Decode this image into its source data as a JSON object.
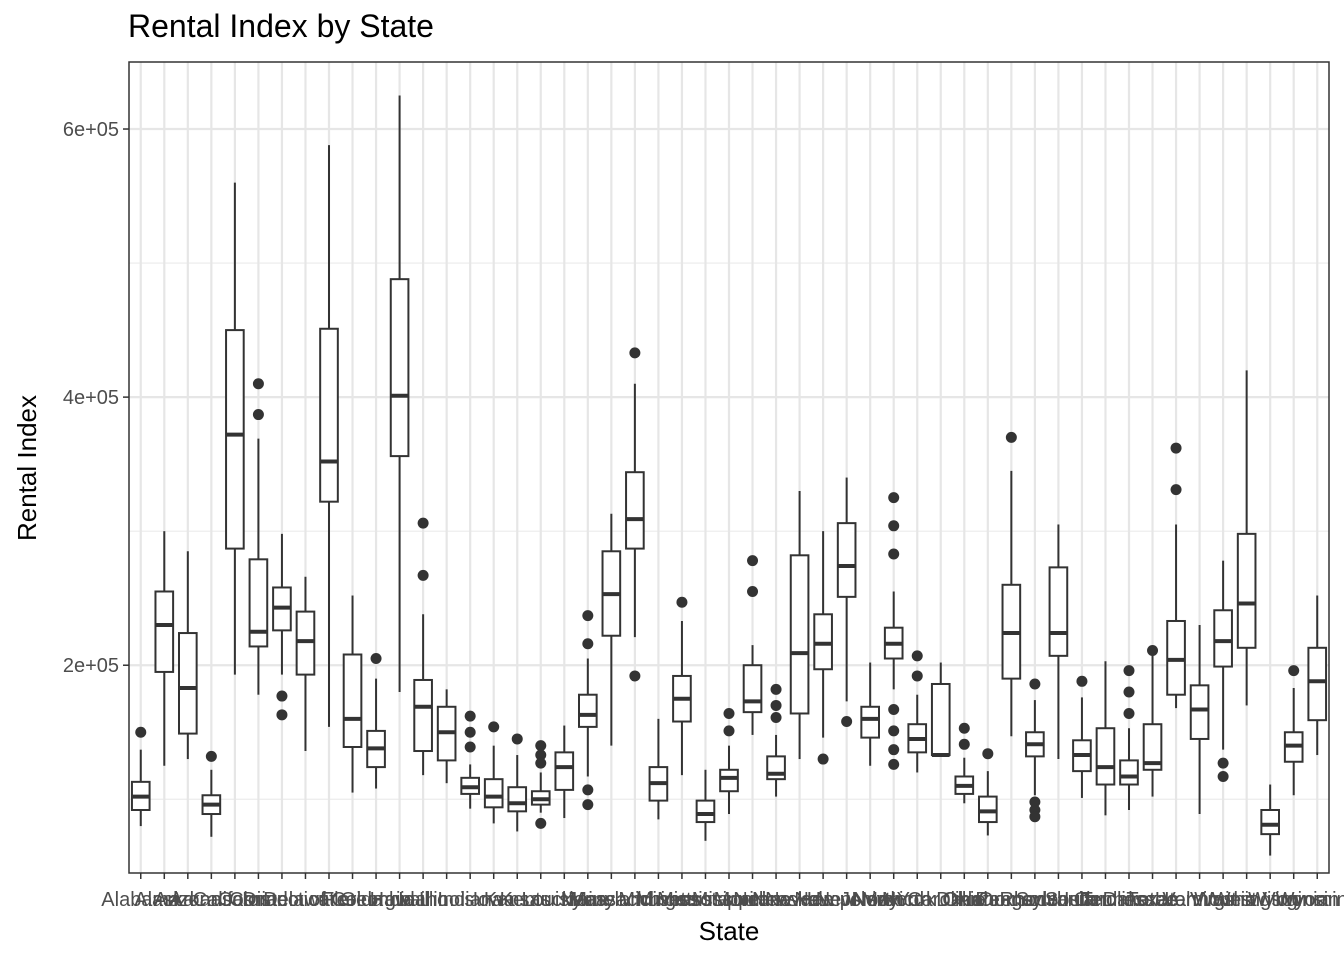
{
  "chart_data": {
    "type": "box",
    "title": "Rental Index by State",
    "xlabel": "State",
    "ylabel": "Rental Index",
    "ylim": [
      45000,
      650000
    ],
    "yticks": [
      200000,
      400000,
      600000
    ],
    "ytick_labels": [
      "2e+05",
      "4e+05",
      "6e+05"
    ],
    "grid": true,
    "categories": [
      "Alabama",
      "Alaska",
      "Arizona",
      "Arkansas",
      "California",
      "Colorado",
      "Connecticut",
      "Delaware",
      "District of Columbia",
      "Florida",
      "Georgia",
      "Hawaii",
      "Idaho",
      "Illinois",
      "Indiana",
      "Iowa",
      "Kansas",
      "Kentucky",
      "Louisiana",
      "Maine",
      "Maryland",
      "Massachusetts",
      "Michigan",
      "Minnesota",
      "Mississippi",
      "Missouri",
      "Montana",
      "Nebraska",
      "Nevada",
      "New Hampshire",
      "New Jersey",
      "New Mexico",
      "New York",
      "North Carolina",
      "North Dakota",
      "Ohio",
      "Oklahoma",
      "Oregon",
      "Pennsylvania",
      "Rhode Island",
      "South Carolina",
      "South Dakota",
      "Tennessee",
      "Texas",
      "Utah",
      "Vermont",
      "Virginia",
      "Washington",
      "West Virginia",
      "Wisconsin",
      "Wyoming"
    ],
    "boxes": [
      {
        "whisker_low": 80000,
        "q1": 92000,
        "median": 102000,
        "q3": 113000,
        "whisker_high": 137000,
        "outliers": [
          150000
        ]
      },
      {
        "whisker_low": 125000,
        "q1": 195000,
        "median": 230000,
        "q3": 255000,
        "whisker_high": 300000,
        "outliers": []
      },
      {
        "whisker_low": 130000,
        "q1": 149000,
        "median": 183000,
        "q3": 224000,
        "whisker_high": 285000,
        "outliers": []
      },
      {
        "whisker_low": 72000,
        "q1": 89000,
        "median": 96000,
        "q3": 103000,
        "whisker_high": 122000,
        "outliers": [
          132000
        ]
      },
      {
        "whisker_low": 193000,
        "q1": 287000,
        "median": 372000,
        "q3": 450000,
        "whisker_high": 560000,
        "outliers": []
      },
      {
        "whisker_low": 178000,
        "q1": 214000,
        "median": 225000,
        "q3": 279000,
        "whisker_high": 369000,
        "outliers": [
          410000,
          387000
        ]
      },
      {
        "whisker_low": 193000,
        "q1": 226000,
        "median": 243000,
        "q3": 258000,
        "whisker_high": 298000,
        "outliers": [
          177000,
          163000
        ]
      },
      {
        "whisker_low": 136000,
        "q1": 193000,
        "median": 218000,
        "q3": 240000,
        "whisker_high": 266000,
        "outliers": []
      },
      {
        "whisker_low": 154000,
        "q1": 322000,
        "median": 352000,
        "q3": 451000,
        "whisker_high": 588000,
        "outliers": []
      },
      {
        "whisker_low": 105000,
        "q1": 139000,
        "median": 160000,
        "q3": 208000,
        "whisker_high": 252000,
        "outliers": []
      },
      {
        "whisker_low": 108000,
        "q1": 124000,
        "median": 138000,
        "q3": 151000,
        "whisker_high": 190000,
        "outliers": [
          205000
        ]
      },
      {
        "whisker_low": 180000,
        "q1": 356000,
        "median": 401000,
        "q3": 488000,
        "whisker_high": 625000,
        "outliers": []
      },
      {
        "whisker_low": 118000,
        "q1": 136000,
        "median": 169000,
        "q3": 189000,
        "whisker_high": 238000,
        "outliers": [
          306000,
          267000
        ]
      },
      {
        "whisker_low": 112000,
        "q1": 129000,
        "median": 150000,
        "q3": 169000,
        "whisker_high": 182000,
        "outliers": []
      },
      {
        "whisker_low": 93000,
        "q1": 104000,
        "median": 109000,
        "q3": 116000,
        "whisker_high": 126000,
        "outliers": [
          162000,
          150000,
          139000
        ]
      },
      {
        "whisker_low": 82000,
        "q1": 94000,
        "median": 102000,
        "q3": 115000,
        "whisker_high": 140000,
        "outliers": [
          154000
        ]
      },
      {
        "whisker_low": 76000,
        "q1": 91000,
        "median": 97000,
        "q3": 109000,
        "whisker_high": 133000,
        "outliers": [
          145000
        ]
      },
      {
        "whisker_low": 90000,
        "q1": 96000,
        "median": 100000,
        "q3": 106000,
        "whisker_high": 120000,
        "outliers": [
          140000,
          133000,
          127000,
          82000
        ]
      },
      {
        "whisker_low": 86000,
        "q1": 107000,
        "median": 124000,
        "q3": 135000,
        "whisker_high": 155000,
        "outliers": []
      },
      {
        "whisker_low": 117000,
        "q1": 154000,
        "median": 163000,
        "q3": 178000,
        "whisker_high": 205000,
        "outliers": [
          237000,
          216000,
          107000,
          96000
        ]
      },
      {
        "whisker_low": 140000,
        "q1": 222000,
        "median": 253000,
        "q3": 285000,
        "whisker_high": 313000,
        "outliers": []
      },
      {
        "whisker_low": 221000,
        "q1": 287000,
        "median": 309000,
        "q3": 344000,
        "whisker_high": 410000,
        "outliers": [
          433000,
          192000
        ]
      },
      {
        "whisker_low": 85000,
        "q1": 99000,
        "median": 112000,
        "q3": 124000,
        "whisker_high": 160000,
        "outliers": []
      },
      {
        "whisker_low": 118000,
        "q1": 158000,
        "median": 175000,
        "q3": 192000,
        "whisker_high": 233000,
        "outliers": [
          247000
        ]
      },
      {
        "whisker_low": 69000,
        "q1": 83000,
        "median": 89000,
        "q3": 99000,
        "whisker_high": 122000,
        "outliers": []
      },
      {
        "whisker_low": 89000,
        "q1": 106000,
        "median": 116000,
        "q3": 122000,
        "whisker_high": 140000,
        "outliers": [
          164000,
          151000
        ]
      },
      {
        "whisker_low": 148000,
        "q1": 165000,
        "median": 173000,
        "q3": 200000,
        "whisker_high": 215000,
        "outliers": [
          278000,
          255000
        ]
      },
      {
        "whisker_low": 102000,
        "q1": 115000,
        "median": 119000,
        "q3": 132000,
        "whisker_high": 148000,
        "outliers": [
          182000,
          170000,
          161000
        ]
      },
      {
        "whisker_low": 130000,
        "q1": 164000,
        "median": 209000,
        "q3": 282000,
        "whisker_high": 330000,
        "outliers": []
      },
      {
        "whisker_low": 146000,
        "q1": 197000,
        "median": 216000,
        "q3": 238000,
        "whisker_high": 300000,
        "outliers": [
          130000
        ]
      },
      {
        "whisker_low": 173000,
        "q1": 251000,
        "median": 274000,
        "q3": 306000,
        "whisker_high": 340000,
        "outliers": [
          158000
        ]
      },
      {
        "whisker_low": 125000,
        "q1": 146000,
        "median": 160000,
        "q3": 169000,
        "whisker_high": 202000,
        "outliers": []
      },
      {
        "whisker_low": 182000,
        "q1": 205000,
        "median": 216000,
        "q3": 228000,
        "whisker_high": 255000,
        "outliers": [
          325000,
          304000,
          283000,
          167000,
          151000,
          137000,
          126000
        ]
      },
      {
        "whisker_low": 120000,
        "q1": 135000,
        "median": 145000,
        "q3": 156000,
        "whisker_high": 178000,
        "outliers": [
          207000,
          192000
        ]
      },
      {
        "whisker_low": 133000,
        "q1": 133000,
        "median": 133000,
        "q3": 186000,
        "whisker_high": 202000,
        "outliers": []
      },
      {
        "whisker_low": 97000,
        "q1": 104000,
        "median": 110000,
        "q3": 117000,
        "whisker_high": 131000,
        "outliers": [
          153000,
          141000
        ]
      },
      {
        "whisker_low": 73000,
        "q1": 83000,
        "median": 91000,
        "q3": 102000,
        "whisker_high": 121000,
        "outliers": [
          134000
        ]
      },
      {
        "whisker_low": 147000,
        "q1": 190000,
        "median": 224000,
        "q3": 260000,
        "whisker_high": 345000,
        "outliers": [
          370000
        ]
      },
      {
        "whisker_low": 103000,
        "q1": 132000,
        "median": 141000,
        "q3": 150000,
        "whisker_high": 174000,
        "outliers": [
          186000,
          98000,
          92000,
          87000
        ]
      },
      {
        "whisker_low": 130000,
        "q1": 207000,
        "median": 224000,
        "q3": 273000,
        "whisker_high": 305000,
        "outliers": []
      },
      {
        "whisker_low": 101000,
        "q1": 121000,
        "median": 133000,
        "q3": 144000,
        "whisker_high": 176000,
        "outliers": [
          188000
        ]
      },
      {
        "whisker_low": 88000,
        "q1": 111000,
        "median": 124000,
        "q3": 153000,
        "whisker_high": 203000,
        "outliers": []
      },
      {
        "whisker_low": 92000,
        "q1": 111000,
        "median": 117000,
        "q3": 129000,
        "whisker_high": 153000,
        "outliers": [
          196000,
          180000,
          164000
        ]
      },
      {
        "whisker_low": 102000,
        "q1": 122000,
        "median": 127000,
        "q3": 156000,
        "whisker_high": 210000,
        "outliers": [
          211000
        ]
      },
      {
        "whisker_low": 168000,
        "q1": 178000,
        "median": 204000,
        "q3": 233000,
        "whisker_high": 305000,
        "outliers": [
          362000,
          331000
        ]
      },
      {
        "whisker_low": 89000,
        "q1": 145000,
        "median": 167000,
        "q3": 185000,
        "whisker_high": 230000,
        "outliers": []
      },
      {
        "whisker_low": 137000,
        "q1": 199000,
        "median": 218000,
        "q3": 241000,
        "whisker_high": 278000,
        "outliers": [
          127000,
          117000
        ]
      },
      {
        "whisker_low": 170000,
        "q1": 213000,
        "median": 246000,
        "q3": 298000,
        "whisker_high": 420000,
        "outliers": []
      },
      {
        "whisker_low": 58000,
        "q1": 74000,
        "median": 81000,
        "q3": 92000,
        "whisker_high": 111000,
        "outliers": []
      },
      {
        "whisker_low": 103000,
        "q1": 128000,
        "median": 140000,
        "q3": 150000,
        "whisker_high": 183000,
        "outliers": [
          196000
        ]
      },
      {
        "whisker_low": 133000,
        "q1": 159000,
        "median": 188000,
        "q3": 213000,
        "whisker_high": 252000,
        "outliers": []
      }
    ]
  }
}
